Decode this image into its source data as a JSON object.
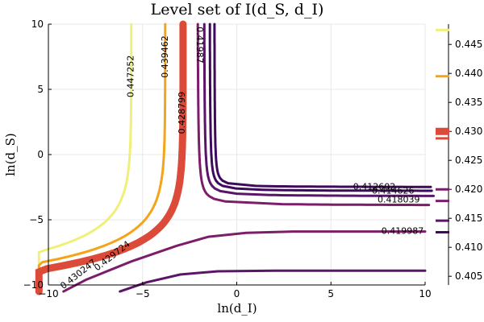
{
  "chart_data": {
    "type": "contour",
    "title": "Level set of I(d_S, d_I)",
    "xlabel": "ln(d_I)",
    "ylabel": "ln(d_S)",
    "xlim": [
      -10,
      10
    ],
    "ylim": [
      -10,
      10
    ],
    "xticks": [
      -10,
      -5,
      0,
      5,
      10
    ],
    "yticks": [
      -10,
      -5,
      0,
      5,
      10
    ],
    "grid": true,
    "colorbar": {
      "ticks": [
        "0.445",
        "0.440",
        "0.435",
        "0.430",
        "0.425",
        "0.420",
        "0.415",
        "0.410",
        "0.405"
      ],
      "tick_values": [
        0.445,
        0.44,
        0.435,
        0.43,
        0.425,
        0.42,
        0.415,
        0.41,
        0.405
      ],
      "range": [
        0.4035,
        0.4485
      ]
    },
    "levels": [
      {
        "value": 0.447252,
        "label": "0.447252",
        "color": "#f0f078",
        "x_asymptote": -5.6,
        "y_asymptote": null
      },
      {
        "value": 0.439462,
        "label": "0.439462",
        "color": "#f5a318",
        "x_asymptote": -3.8,
        "y_asymptote": null
      },
      {
        "value": 0.430247,
        "label": "0.430247",
        "color": "#dc4a3a",
        "x_asymptote": -2.85,
        "y_asymptote": null
      },
      {
        "value": 0.429724,
        "label": "0.429724",
        "color": "#dc4a3a",
        "x_asymptote": -2.7,
        "y_asymptote": null
      },
      {
        "value": 0.428799,
        "label": "0.428799",
        "color": "#dc4a3a",
        "x_asymptote": -2.6,
        "y_asymptote": null
      },
      {
        "value": 0.419987,
        "label": "0.419987",
        "color": "#7c1d6a",
        "x_asymptote": -1.85,
        "y_asymptote": -3.9
      },
      {
        "value": 0.418039,
        "label": "0.418039",
        "color": "#7c1d6a",
        "x_asymptote": null,
        "y_asymptote": -5.9
      },
      {
        "value": 0.414626,
        "label": "0.414626",
        "color": "#5a1568",
        "x_asymptote": null,
        "y_asymptote": -8.9
      },
      {
        "value": 0.412602,
        "label": "0.412602",
        "color": "#3e0b5c",
        "x_asymptote": null,
        "y_asymptote": -2.5
      },
      {
        "value": 0.41987,
        "label": "0.41987",
        "color": "#3e0b5c",
        "x_asymptote": -1.7,
        "y_asymptote": null
      },
      {
        "value": 0.430247,
        "label": "0.430247",
        "color": "#dc4a3a",
        "x_asymptote": null,
        "y_asymptote": null
      }
    ]
  }
}
